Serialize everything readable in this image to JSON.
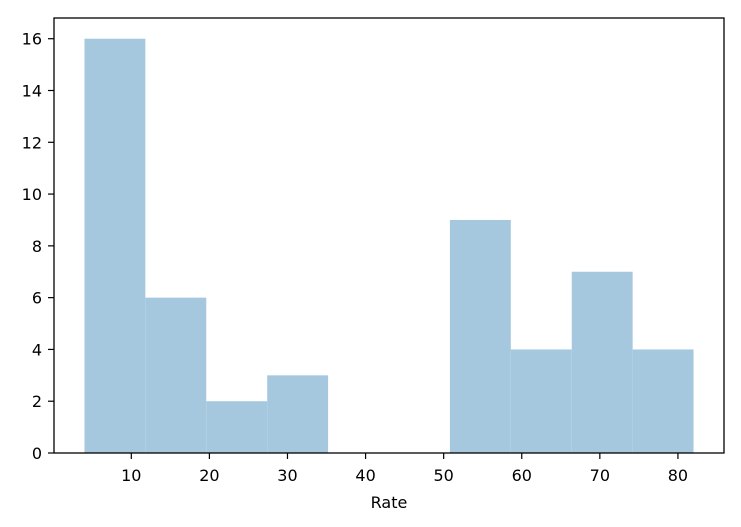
{
  "chart_data": {
    "type": "bar",
    "subtype": "histogram",
    "title": "",
    "xlabel": "Rate",
    "ylabel": "",
    "bins": [
      {
        "x0": 4.0,
        "x1": 11.8,
        "count": 16
      },
      {
        "x0": 11.8,
        "x1": 19.6,
        "count": 6
      },
      {
        "x0": 19.6,
        "x1": 27.4,
        "count": 2
      },
      {
        "x0": 27.4,
        "x1": 35.2,
        "count": 3
      },
      {
        "x0": 35.2,
        "x1": 43.0,
        "count": 0
      },
      {
        "x0": 43.0,
        "x1": 50.8,
        "count": 0
      },
      {
        "x0": 50.8,
        "x1": 58.6,
        "count": 9
      },
      {
        "x0": 58.6,
        "x1": 66.4,
        "count": 4
      },
      {
        "x0": 66.4,
        "x1": 74.2,
        "count": 7
      },
      {
        "x0": 74.2,
        "x1": 82.0,
        "count": 4
      }
    ],
    "xlim": [
      0.1,
      85.9
    ],
    "ylim": [
      0,
      16.8
    ],
    "x_ticks": [
      10,
      20,
      30,
      40,
      50,
      60,
      70,
      80
    ],
    "y_ticks": [
      0,
      2,
      4,
      6,
      8,
      10,
      12,
      14,
      16
    ],
    "grid": false,
    "legend": "none",
    "colors": {
      "bar": "#a6c8df",
      "axes": "#000000"
    }
  }
}
